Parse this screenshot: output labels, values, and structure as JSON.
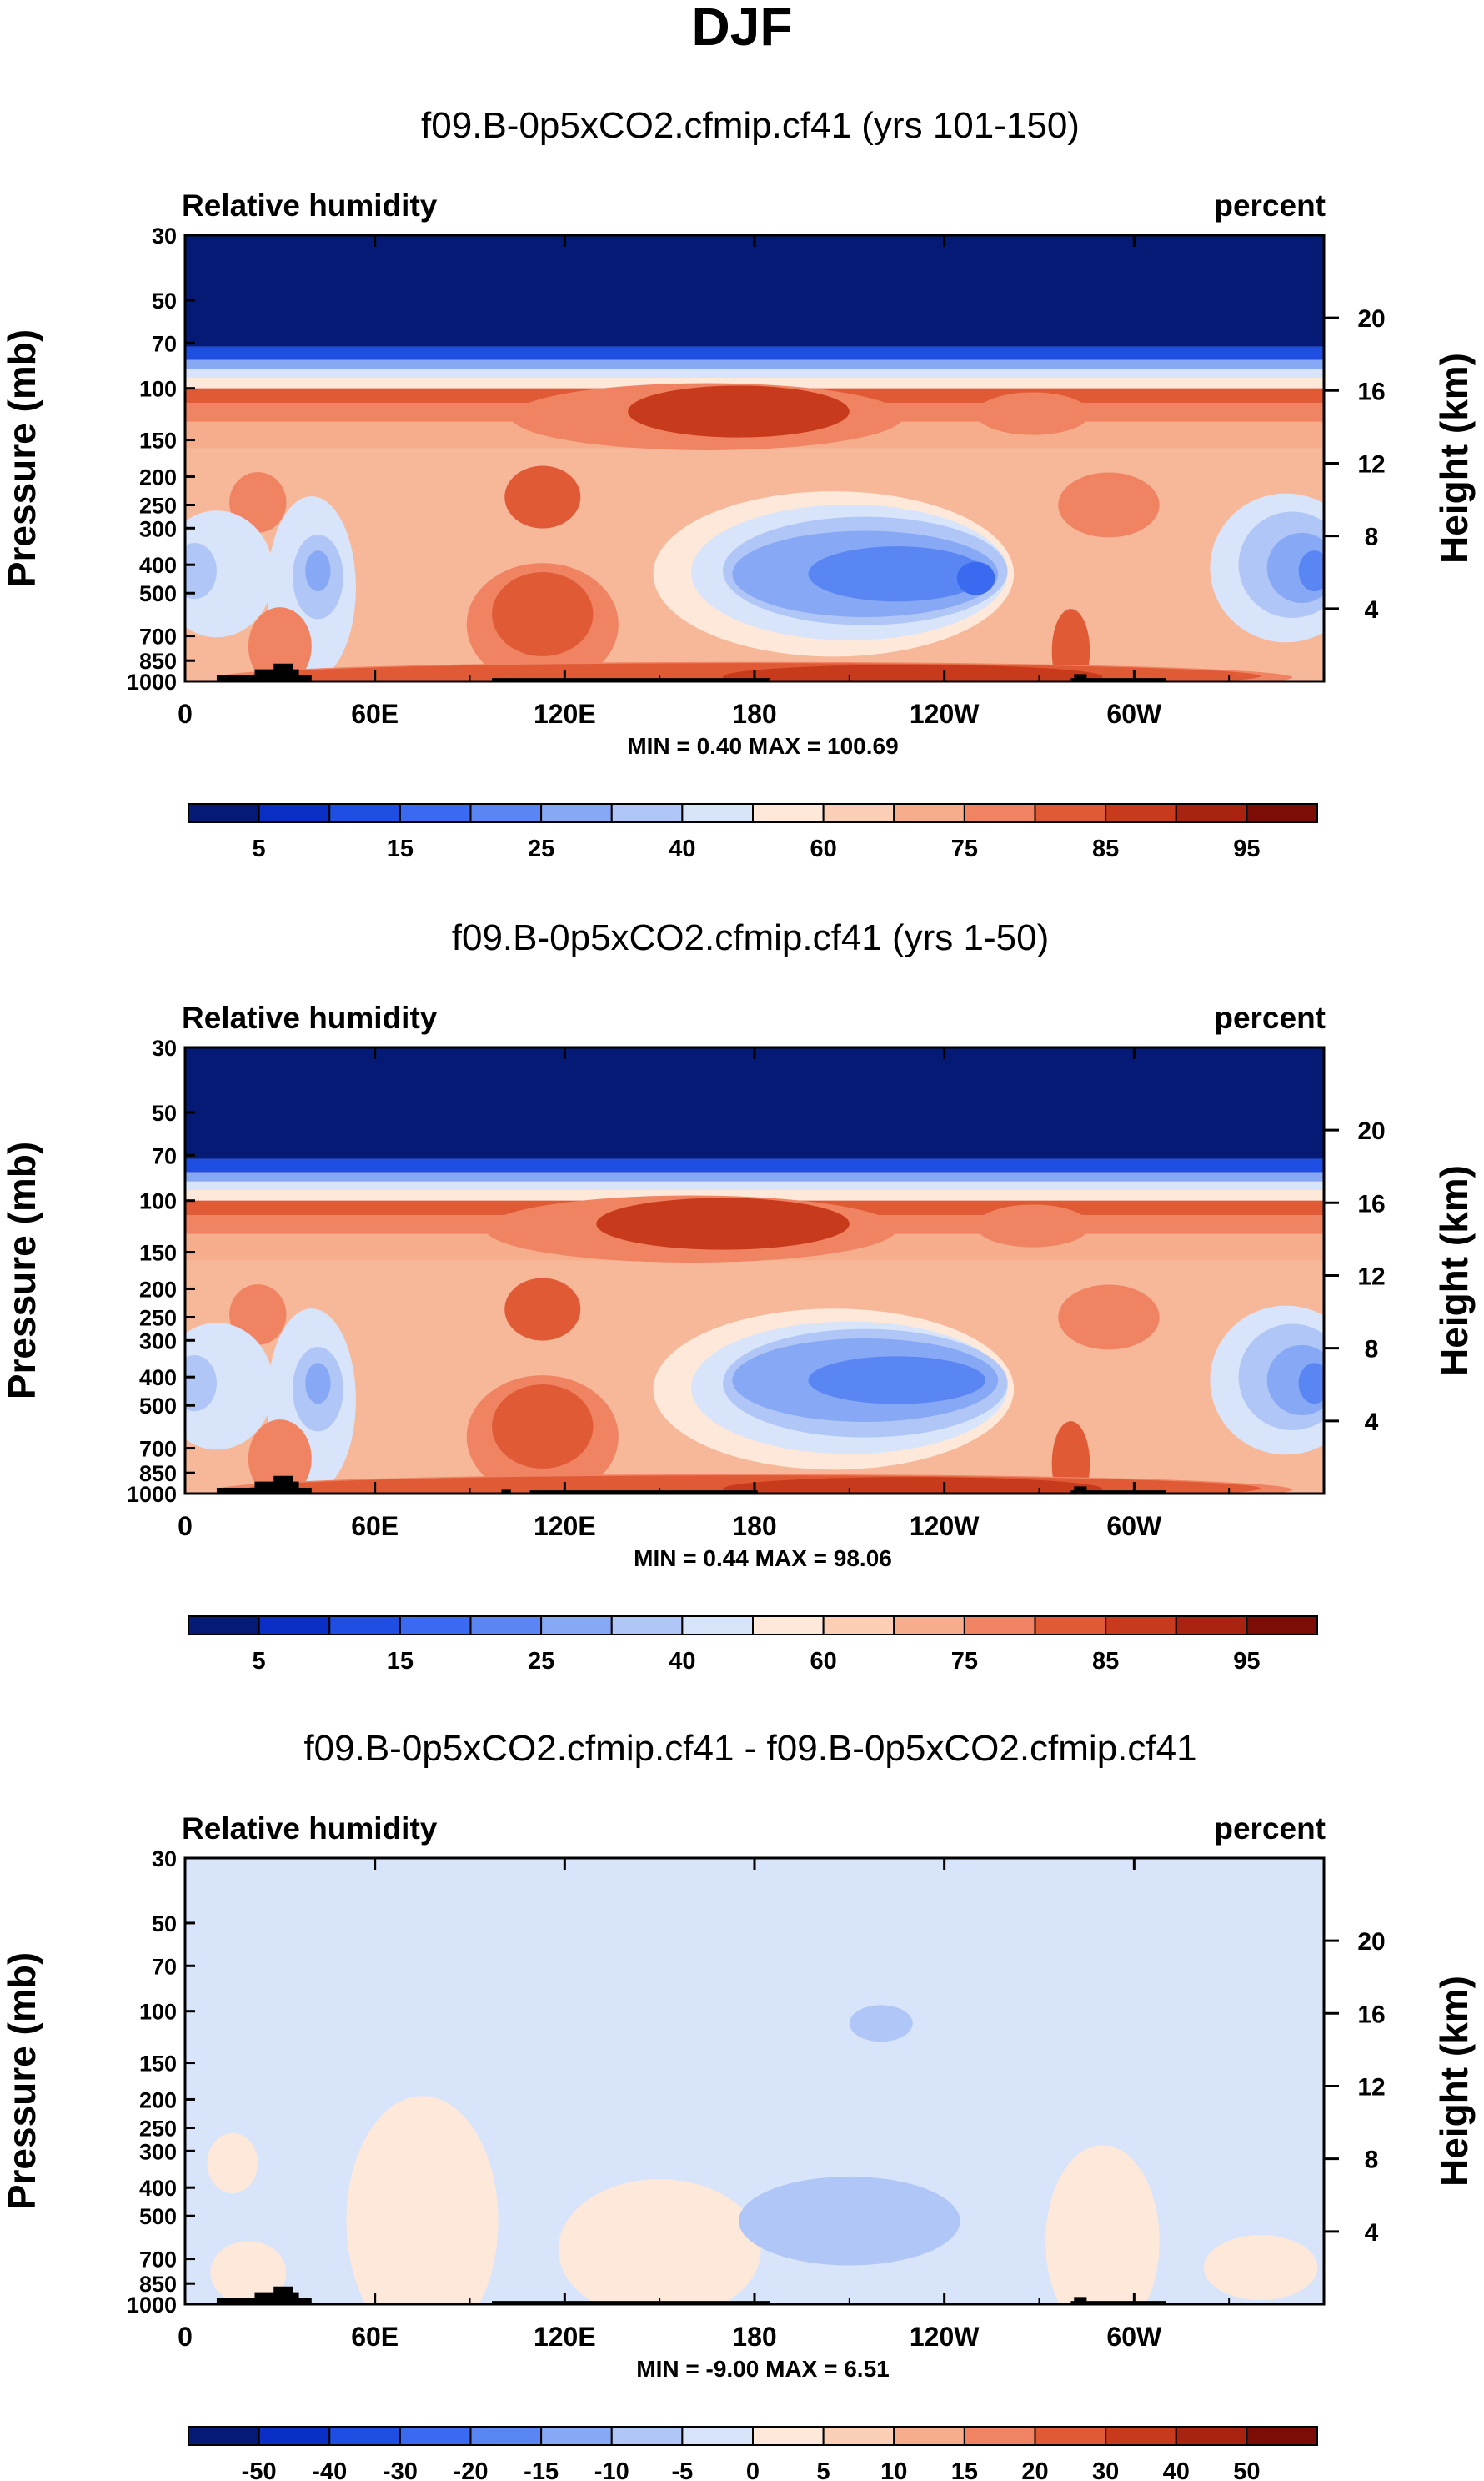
{
  "figure": {
    "title": "DJF",
    "black_hex": "#000000"
  },
  "chart_data": [
    {
      "type": "contour",
      "title": "f09.B-0p5xCO2.cfmip.cf41 (yrs 101-150)",
      "left_label": "Relative humidity",
      "right_label": "percent",
      "ylabel": "Pressure (mb)",
      "ylabel_right": "Height (km)",
      "x_ticks": [
        "0",
        "60E",
        "120E",
        "180",
        "120W",
        "60W"
      ],
      "x_tick_lon": [
        0,
        60,
        120,
        180,
        240,
        300
      ],
      "xlim": [
        0,
        360
      ],
      "y_ticks": [
        "30",
        "50",
        "70",
        "100",
        "150",
        "200",
        "250",
        "300",
        "400",
        "500",
        "700",
        "850",
        "1000"
      ],
      "y_tick_p": [
        30,
        50,
        70,
        100,
        150,
        200,
        250,
        300,
        400,
        500,
        700,
        850,
        1000
      ],
      "ylim": [
        1000,
        30
      ],
      "height_ticks": [
        "20",
        "16",
        "12",
        "8",
        "4"
      ],
      "height_tick_km": [
        20,
        16,
        12,
        8,
        4
      ],
      "stats": "MIN =   0.40  MAX = 100.69",
      "levels": [
        "5",
        "10",
        "15",
        "20",
        "25",
        "30",
        "40",
        "50",
        "60",
        "70",
        "75",
        "80",
        "85",
        "90",
        "95"
      ],
      "level_labels": [
        "5",
        "15",
        "25",
        "40",
        "60",
        "75",
        "85",
        "95"
      ],
      "palette": [
        "#051a74",
        "#0a2fc4",
        "#1f4fe2",
        "#3a6af0",
        "#5a86f4",
        "#86a8f5",
        "#b0c6f7",
        "#d8e4fa",
        "#fde8da",
        "#fbcfb5",
        "#f6ad8c",
        "#ef8362",
        "#e05a36",
        "#c83a1c",
        "#a82410",
        "#7c0d06"
      ],
      "background_color": "#f7b89a",
      "features": [
        {
          "lon": 165,
          "p": 125,
          "rx": 62,
          "ry": 26,
          "level": 11
        },
        {
          "lon": 175,
          "p": 120,
          "rx": 35,
          "ry": 18,
          "level": 13
        },
        {
          "lon": 268,
          "p": 122,
          "rx": 18,
          "ry": 14,
          "level": 11
        },
        {
          "lon": 23,
          "p": 245,
          "rx": 9,
          "ry": 45,
          "level": 11
        },
        {
          "lon": 113,
          "p": 235,
          "rx": 12,
          "ry": 45,
          "level": 12
        },
        {
          "lon": 292,
          "p": 250,
          "rx": 16,
          "ry": 50,
          "level": 11
        },
        {
          "lon": 205,
          "p": 430,
          "rx": 57,
          "ry": 230,
          "level": 8
        },
        {
          "lon": 210,
          "p": 425,
          "rx": 50,
          "ry": 190,
          "level": 7
        },
        {
          "lon": 215,
          "p": 420,
          "rx": 45,
          "ry": 150,
          "level": 6
        },
        {
          "lon": 215,
          "p": 430,
          "rx": 42,
          "ry": 120,
          "level": 5
        },
        {
          "lon": 225,
          "p": 430,
          "rx": 28,
          "ry": 70,
          "level": 4
        },
        {
          "lon": 250,
          "p": 445,
          "rx": 6,
          "ry": 35,
          "level": 3
        },
        {
          "lon": 10,
          "p": 430,
          "rx": 18,
          "ry": 180,
          "level": 7
        },
        {
          "lon": 3,
          "p": 420,
          "rx": 7,
          "ry": 70,
          "level": 6
        },
        {
          "lon": 40,
          "p": 480,
          "rx": 14,
          "ry": 280,
          "level": 7
        },
        {
          "lon": 42,
          "p": 440,
          "rx": 8,
          "ry": 120,
          "level": 6
        },
        {
          "lon": 42,
          "p": 420,
          "rx": 4,
          "ry": 45,
          "level": 5
        },
        {
          "lon": 348,
          "p": 410,
          "rx": 24,
          "ry": 200,
          "level": 7
        },
        {
          "lon": 350,
          "p": 400,
          "rx": 17,
          "ry": 140,
          "level": 6
        },
        {
          "lon": 353,
          "p": 410,
          "rx": 11,
          "ry": 90,
          "level": 5
        },
        {
          "lon": 357,
          "p": 420,
          "rx": 5,
          "ry": 45,
          "level": 4
        },
        {
          "lon": 113,
          "p": 640,
          "rx": 24,
          "ry": 260,
          "level": 11
        },
        {
          "lon": 113,
          "p": 590,
          "rx": 16,
          "ry": 160,
          "level": 12
        },
        {
          "lon": 30,
          "p": 760,
          "rx": 10,
          "ry": 190,
          "level": 11
        },
        {
          "lon": 280,
          "p": 790,
          "rx": 6,
          "ry": 220,
          "level": 12
        },
        {
          "lon": 180,
          "p": 970,
          "rx": 170,
          "ry": 100,
          "level": 11
        },
        {
          "lon": 180,
          "p": 960,
          "rx": 160,
          "ry": 55,
          "level": 12
        },
        {
          "lon": 230,
          "p": 965,
          "rx": 60,
          "ry": 45,
          "level": 13
        }
      ],
      "orography": [
        {
          "lon0": 10,
          "lon1": 40,
          "p": 955
        },
        {
          "lon0": 22,
          "lon1": 36,
          "p": 910
        },
        {
          "lon0": 28,
          "lon1": 34,
          "p": 870
        },
        {
          "lon0": 97,
          "lon1": 185,
          "p": 975
        },
        {
          "lon0": 280,
          "lon1": 310,
          "p": 975
        },
        {
          "lon0": 281,
          "lon1": 285,
          "p": 945
        }
      ]
    },
    {
      "type": "contour",
      "title": "f09.B-0p5xCO2.cfmip.cf41 (yrs 1-50)",
      "left_label": "Relative humidity",
      "right_label": "percent",
      "ylabel": "Pressure (mb)",
      "ylabel_right": "Height (km)",
      "x_ticks": [
        "0",
        "60E",
        "120E",
        "180",
        "120W",
        "60W"
      ],
      "x_tick_lon": [
        0,
        60,
        120,
        180,
        240,
        300
      ],
      "xlim": [
        0,
        360
      ],
      "y_ticks": [
        "30",
        "50",
        "70",
        "100",
        "150",
        "200",
        "250",
        "300",
        "400",
        "500",
        "700",
        "850",
        "1000"
      ],
      "y_tick_p": [
        30,
        50,
        70,
        100,
        150,
        200,
        250,
        300,
        400,
        500,
        700,
        850,
        1000
      ],
      "ylim": [
        1000,
        30
      ],
      "height_ticks": [
        "20",
        "16",
        "12",
        "8",
        "4"
      ],
      "height_tick_km": [
        20,
        16,
        12,
        8,
        4
      ],
      "stats": "MIN =   0.44  MAX =  98.06",
      "levels": [
        "5",
        "10",
        "15",
        "20",
        "25",
        "30",
        "40",
        "50",
        "60",
        "70",
        "75",
        "80",
        "85",
        "90",
        "95"
      ],
      "level_labels": [
        "5",
        "15",
        "25",
        "40",
        "60",
        "75",
        "85",
        "95"
      ],
      "palette": [
        "#051a74",
        "#0a2fc4",
        "#1f4fe2",
        "#3a6af0",
        "#5a86f4",
        "#86a8f5",
        "#b0c6f7",
        "#d8e4fa",
        "#fde8da",
        "#fbcfb5",
        "#f6ad8c",
        "#ef8362",
        "#e05a36",
        "#c83a1c",
        "#a82410",
        "#7c0d06"
      ],
      "background_color": "#f7b89a",
      "features": [
        {
          "lon": 160,
          "p": 125,
          "rx": 65,
          "ry": 26,
          "level": 11
        },
        {
          "lon": 170,
          "p": 120,
          "rx": 40,
          "ry": 18,
          "level": 13
        },
        {
          "lon": 268,
          "p": 122,
          "rx": 18,
          "ry": 14,
          "level": 11
        },
        {
          "lon": 23,
          "p": 245,
          "rx": 9,
          "ry": 45,
          "level": 11
        },
        {
          "lon": 113,
          "p": 235,
          "rx": 12,
          "ry": 45,
          "level": 12
        },
        {
          "lon": 292,
          "p": 250,
          "rx": 16,
          "ry": 50,
          "level": 11
        },
        {
          "lon": 205,
          "p": 440,
          "rx": 57,
          "ry": 230,
          "level": 8
        },
        {
          "lon": 210,
          "p": 435,
          "rx": 50,
          "ry": 190,
          "level": 7
        },
        {
          "lon": 215,
          "p": 420,
          "rx": 45,
          "ry": 150,
          "level": 6
        },
        {
          "lon": 215,
          "p": 410,
          "rx": 42,
          "ry": 110,
          "level": 5
        },
        {
          "lon": 225,
          "p": 410,
          "rx": 28,
          "ry": 55,
          "level": 4
        },
        {
          "lon": 10,
          "p": 430,
          "rx": 18,
          "ry": 180,
          "level": 7
        },
        {
          "lon": 3,
          "p": 420,
          "rx": 7,
          "ry": 70,
          "level": 6
        },
        {
          "lon": 40,
          "p": 480,
          "rx": 14,
          "ry": 280,
          "level": 7
        },
        {
          "lon": 42,
          "p": 440,
          "rx": 8,
          "ry": 120,
          "level": 6
        },
        {
          "lon": 42,
          "p": 420,
          "rx": 4,
          "ry": 45,
          "level": 5
        },
        {
          "lon": 348,
          "p": 410,
          "rx": 24,
          "ry": 200,
          "level": 7
        },
        {
          "lon": 350,
          "p": 400,
          "rx": 17,
          "ry": 140,
          "level": 6
        },
        {
          "lon": 353,
          "p": 410,
          "rx": 11,
          "ry": 90,
          "level": 5
        },
        {
          "lon": 357,
          "p": 420,
          "rx": 5,
          "ry": 45,
          "level": 4
        },
        {
          "lon": 113,
          "p": 640,
          "rx": 24,
          "ry": 260,
          "level": 11
        },
        {
          "lon": 113,
          "p": 590,
          "rx": 16,
          "ry": 160,
          "level": 12
        },
        {
          "lon": 30,
          "p": 760,
          "rx": 10,
          "ry": 190,
          "level": 11
        },
        {
          "lon": 280,
          "p": 790,
          "rx": 6,
          "ry": 220,
          "level": 12
        },
        {
          "lon": 180,
          "p": 970,
          "rx": 170,
          "ry": 100,
          "level": 11
        },
        {
          "lon": 180,
          "p": 960,
          "rx": 160,
          "ry": 55,
          "level": 12
        },
        {
          "lon": 230,
          "p": 965,
          "rx": 60,
          "ry": 45,
          "level": 13
        }
      ],
      "orography": [
        {
          "lon0": 10,
          "lon1": 40,
          "p": 955
        },
        {
          "lon0": 22,
          "lon1": 36,
          "p": 910
        },
        {
          "lon0": 28,
          "lon1": 34,
          "p": 870
        },
        {
          "lon0": 100,
          "lon1": 103,
          "p": 970
        },
        {
          "lon0": 109,
          "lon1": 181,
          "p": 975
        },
        {
          "lon0": 280,
          "lon1": 310,
          "p": 975
        },
        {
          "lon0": 281,
          "lon1": 285,
          "p": 945
        }
      ]
    },
    {
      "type": "contour",
      "title": "f09.B-0p5xCO2.cfmip.cf41 - f09.B-0p5xCO2.cfmip.cf41",
      "left_label": "Relative humidity",
      "right_label": "percent",
      "ylabel": "Pressure (mb)",
      "ylabel_right": "Height (km)",
      "x_ticks": [
        "0",
        "60E",
        "120E",
        "180",
        "120W",
        "60W"
      ],
      "x_tick_lon": [
        0,
        60,
        120,
        180,
        240,
        300
      ],
      "xlim": [
        0,
        360
      ],
      "y_ticks": [
        "30",
        "50",
        "70",
        "100",
        "150",
        "200",
        "250",
        "300",
        "400",
        "500",
        "700",
        "850",
        "1000"
      ],
      "y_tick_p": [
        30,
        50,
        70,
        100,
        150,
        200,
        250,
        300,
        400,
        500,
        700,
        850,
        1000
      ],
      "ylim": [
        1000,
        30
      ],
      "height_ticks": [
        "20",
        "16",
        "12",
        "8",
        "4"
      ],
      "height_tick_km": [
        20,
        16,
        12,
        8,
        4
      ],
      "stats": "MIN =  -9.00  MAX =   6.51",
      "levels": [
        "-50",
        "-40",
        "-30",
        "-20",
        "-15",
        "-10",
        "-5",
        "0",
        "5",
        "10",
        "15",
        "20",
        "30",
        "40",
        "50"
      ],
      "level_labels": [
        "-50",
        "-40",
        "-30",
        "-20",
        "-15",
        "-10",
        "-5",
        "0",
        "5",
        "10",
        "15",
        "20",
        "30",
        "40",
        "50"
      ],
      "palette": [
        "#051a74",
        "#0a2fc4",
        "#1f4fe2",
        "#3a6af0",
        "#5a86f4",
        "#86a8f5",
        "#b0c6f7",
        "#d8e4fa",
        "#fde8da",
        "#fbcfb5",
        "#f6ad8c",
        "#ef8362",
        "#e05a36",
        "#c83a1c",
        "#a82410",
        "#7c0d06"
      ],
      "background_color": "#d8e4fa",
      "features": [
        {
          "lon": 75,
          "p": 520,
          "rx": 24,
          "ry": 380,
          "level": 8
        },
        {
          "lon": 150,
          "p": 650,
          "rx": 32,
          "ry": 300,
          "level": 8
        },
        {
          "lon": 290,
          "p": 610,
          "rx": 18,
          "ry": 370,
          "level": 8
        },
        {
          "lon": 15,
          "p": 330,
          "rx": 8,
          "ry": 60,
          "level": 8
        },
        {
          "lon": 20,
          "p": 780,
          "rx": 12,
          "ry": 150,
          "level": 8
        },
        {
          "lon": 340,
          "p": 750,
          "rx": 18,
          "ry": 150,
          "level": 8
        },
        {
          "lon": 220,
          "p": 110,
          "rx": 10,
          "ry": 10,
          "level": 6
        },
        {
          "lon": 210,
          "p": 520,
          "rx": 35,
          "ry": 150,
          "level": 6
        }
      ],
      "orography": [
        {
          "lon0": 10,
          "lon1": 40,
          "p": 955
        },
        {
          "lon0": 22,
          "lon1": 36,
          "p": 910
        },
        {
          "lon0": 28,
          "lon1": 34,
          "p": 870
        },
        {
          "lon0": 97,
          "lon1": 185,
          "p": 975
        },
        {
          "lon0": 280,
          "lon1": 310,
          "p": 975
        },
        {
          "lon0": 281,
          "lon1": 285,
          "p": 945
        }
      ]
    }
  ]
}
